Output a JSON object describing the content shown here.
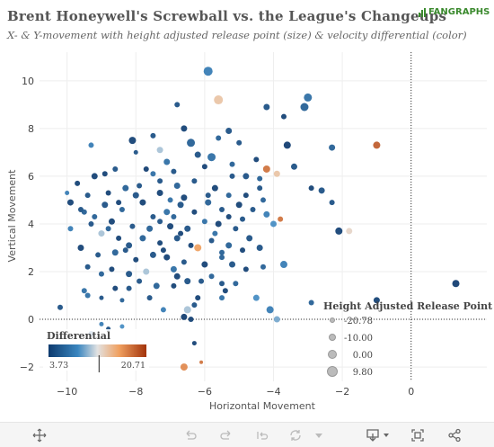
{
  "header": {
    "title": "Brent Honeywell's Screwball vs. the League's Changeups",
    "subtitle": "X- & Y-movement with height adjusted release point (size) & velocity differential (color)",
    "logo_text": "FANGRAPHS"
  },
  "colors": {
    "brand_green": "#3b8a2e",
    "scale_low": "#0d3a6e",
    "scale_mid": "#e8e8e8",
    "scale_high": "#a2330b"
  },
  "chart_data": {
    "type": "scatter",
    "xlabel": "Horizontal Movement",
    "ylabel": "Vertical Movement",
    "xlim": [
      -10.8,
      2.2
    ],
    "ylim": [
      -2.6,
      11.2
    ],
    "xticks": [
      -10,
      -8,
      -6,
      -4,
      -2,
      0
    ],
    "yticks": [
      -2,
      0,
      2,
      4,
      6,
      8,
      10
    ],
    "grid": true,
    "zero_lines": "dotted",
    "color_legend": {
      "title": "Differential",
      "min": 3.73,
      "max": 20.71,
      "marker": 12.5,
      "min_label": "3.73",
      "max_label": "20.71",
      "placement": "bottom-left"
    },
    "size_legend": {
      "title": "Height  Adjusted  Release  Point",
      "entries": [
        "-20.78",
        "-10.00",
        "0.00",
        "9.80"
      ],
      "placement": "bottom-right"
    },
    "points": [
      {
        "x": -5.9,
        "y": 10.4,
        "s": 9,
        "c": 8
      },
      {
        "x": -5.6,
        "y": 9.2,
        "s": 9,
        "c": 14
      },
      {
        "x": -3.0,
        "y": 9.3,
        "s": 8,
        "c": 7
      },
      {
        "x": -3.1,
        "y": 8.9,
        "s": 8,
        "c": 6
      },
      {
        "x": -4.2,
        "y": 8.9,
        "s": 6,
        "c": 5
      },
      {
        "x": -3.7,
        "y": 8.5,
        "s": 5,
        "c": 4
      },
      {
        "x": -6.8,
        "y": 9.0,
        "s": 5,
        "c": 5
      },
      {
        "x": -6.6,
        "y": 8.0,
        "s": 6,
        "c": 4
      },
      {
        "x": -7.5,
        "y": 7.7,
        "s": 5,
        "c": 5
      },
      {
        "x": -8.1,
        "y": 7.5,
        "s": 7,
        "c": 4
      },
      {
        "x": -9.3,
        "y": 7.3,
        "s": 5,
        "c": 8
      },
      {
        "x": -8.0,
        "y": 7.0,
        "s": 4,
        "c": 5
      },
      {
        "x": -7.3,
        "y": 7.1,
        "s": 6,
        "c": 11
      },
      {
        "x": -6.4,
        "y": 7.4,
        "s": 8,
        "c": 6
      },
      {
        "x": -5.6,
        "y": 7.6,
        "s": 5,
        "c": 6
      },
      {
        "x": -5.3,
        "y": 7.9,
        "s": 6,
        "c": 5
      },
      {
        "x": -5.0,
        "y": 7.4,
        "s": 5,
        "c": 5
      },
      {
        "x": -3.6,
        "y": 7.3,
        "s": 7,
        "c": 3
      },
      {
        "x": -2.3,
        "y": 7.2,
        "s": 6,
        "c": 6
      },
      {
        "x": -1.0,
        "y": 7.3,
        "s": 7,
        "c": 19
      },
      {
        "x": -6.2,
        "y": 6.9,
        "s": 6,
        "c": 5
      },
      {
        "x": -5.8,
        "y": 6.8,
        "s": 8,
        "c": 7
      },
      {
        "x": -5.2,
        "y": 6.5,
        "s": 5,
        "c": 6
      },
      {
        "x": -6.0,
        "y": 6.4,
        "s": 5,
        "c": 4
      },
      {
        "x": -6.9,
        "y": 6.2,
        "s": 5,
        "c": 5
      },
      {
        "x": -7.1,
        "y": 6.6,
        "s": 6,
        "c": 7
      },
      {
        "x": -7.7,
        "y": 6.3,
        "s": 5,
        "c": 3
      },
      {
        "x": -8.6,
        "y": 6.3,
        "s": 5,
        "c": 5
      },
      {
        "x": -9.2,
        "y": 6.0,
        "s": 6,
        "c": 4
      },
      {
        "x": -9.7,
        "y": 5.7,
        "s": 5,
        "c": 4
      },
      {
        "x": -4.8,
        "y": 6.0,
        "s": 6,
        "c": 5
      },
      {
        "x": -4.4,
        "y": 5.9,
        "s": 5,
        "c": 6
      },
      {
        "x": -4.2,
        "y": 6.3,
        "s": 7,
        "c": 18
      },
      {
        "x": -3.9,
        "y": 6.1,
        "s": 6,
        "c": 14
      },
      {
        "x": -3.4,
        "y": 6.4,
        "s": 6,
        "c": 5
      },
      {
        "x": -2.9,
        "y": 5.5,
        "s": 5,
        "c": 4
      },
      {
        "x": -2.6,
        "y": 5.4,
        "s": 6,
        "c": 5
      },
      {
        "x": -2.3,
        "y": 4.9,
        "s": 5,
        "c": 5
      },
      {
        "x": -5.3,
        "y": 5.2,
        "s": 5,
        "c": 6
      },
      {
        "x": -5.7,
        "y": 5.5,
        "s": 6,
        "c": 4
      },
      {
        "x": -6.3,
        "y": 5.8,
        "s": 5,
        "c": 5
      },
      {
        "x": -6.8,
        "y": 5.6,
        "s": 6,
        "c": 6
      },
      {
        "x": -7.3,
        "y": 5.3,
        "s": 6,
        "c": 4
      },
      {
        "x": -7.9,
        "y": 5.6,
        "s": 5,
        "c": 5
      },
      {
        "x": -8.3,
        "y": 5.5,
        "s": 6,
        "c": 6
      },
      {
        "x": -8.8,
        "y": 5.3,
        "s": 5,
        "c": 4
      },
      {
        "x": -9.4,
        "y": 5.2,
        "s": 5,
        "c": 5
      },
      {
        "x": -10.0,
        "y": 5.3,
        "s": 4,
        "c": 8
      },
      {
        "x": -9.9,
        "y": 4.9,
        "s": 6,
        "c": 4
      },
      {
        "x": -9.6,
        "y": 4.6,
        "s": 5,
        "c": 5
      },
      {
        "x": -8.9,
        "y": 4.8,
        "s": 6,
        "c": 5
      },
      {
        "x": -8.4,
        "y": 4.6,
        "s": 5,
        "c": 6
      },
      {
        "x": -7.8,
        "y": 4.9,
        "s": 6,
        "c": 4
      },
      {
        "x": -7.5,
        "y": 4.3,
        "s": 5,
        "c": 5
      },
      {
        "x": -7.1,
        "y": 4.5,
        "s": 6,
        "c": 7
      },
      {
        "x": -6.7,
        "y": 4.8,
        "s": 6,
        "c": 5
      },
      {
        "x": -6.3,
        "y": 4.5,
        "s": 5,
        "c": 4
      },
      {
        "x": -5.9,
        "y": 4.9,
        "s": 6,
        "c": 6
      },
      {
        "x": -5.5,
        "y": 4.6,
        "s": 5,
        "c": 5
      },
      {
        "x": -5.0,
        "y": 4.8,
        "s": 6,
        "c": 4
      },
      {
        "x": -4.6,
        "y": 4.6,
        "s": 5,
        "c": 5
      },
      {
        "x": -4.2,
        "y": 4.4,
        "s": 6,
        "c": 8
      },
      {
        "x": -3.8,
        "y": 4.2,
        "s": 5,
        "c": 18
      },
      {
        "x": -4.0,
        "y": 4.0,
        "s": 6,
        "c": 9
      },
      {
        "x": -9.5,
        "y": 4.5,
        "s": 5,
        "c": 6
      },
      {
        "x": -9.3,
        "y": 4.0,
        "s": 5,
        "c": 5
      },
      {
        "x": -8.7,
        "y": 4.1,
        "s": 6,
        "c": 4
      },
      {
        "x": -8.1,
        "y": 3.9,
        "s": 5,
        "c": 5
      },
      {
        "x": -7.6,
        "y": 3.8,
        "s": 6,
        "c": 6
      },
      {
        "x": -7.0,
        "y": 3.9,
        "s": 6,
        "c": 4
      },
      {
        "x": -6.5,
        "y": 3.8,
        "s": 6,
        "c": 5
      },
      {
        "x": -6.0,
        "y": 4.1,
        "s": 5,
        "c": 7
      },
      {
        "x": -5.6,
        "y": 4.0,
        "s": 6,
        "c": 4
      },
      {
        "x": -5.1,
        "y": 3.8,
        "s": 5,
        "c": 5
      },
      {
        "x": -4.7,
        "y": 3.4,
        "s": 6,
        "c": 5
      },
      {
        "x": -2.1,
        "y": 3.7,
        "s": 7,
        "c": 4
      },
      {
        "x": -1.8,
        "y": 3.7,
        "s": 6,
        "c": 13
      },
      {
        "x": -9.0,
        "y": 3.6,
        "s": 6,
        "c": 11
      },
      {
        "x": -9.9,
        "y": 3.8,
        "s": 5,
        "c": 8
      },
      {
        "x": -8.5,
        "y": 3.4,
        "s": 5,
        "c": 4
      },
      {
        "x": -8.2,
        "y": 3.1,
        "s": 6,
        "c": 5
      },
      {
        "x": -7.8,
        "y": 3.4,
        "s": 6,
        "c": 6
      },
      {
        "x": -7.3,
        "y": 3.2,
        "s": 5,
        "c": 4
      },
      {
        "x": -6.8,
        "y": 3.4,
        "s": 6,
        "c": 5
      },
      {
        "x": -6.4,
        "y": 3.1,
        "s": 5,
        "c": 4
      },
      {
        "x": -6.2,
        "y": 3.0,
        "s": 7,
        "c": 16
      },
      {
        "x": -5.8,
        "y": 3.3,
        "s": 5,
        "c": 5
      },
      {
        "x": -5.3,
        "y": 3.1,
        "s": 6,
        "c": 6
      },
      {
        "x": -4.9,
        "y": 2.9,
        "s": 5,
        "c": 4
      },
      {
        "x": -4.4,
        "y": 3.0,
        "s": 6,
        "c": 5
      },
      {
        "x": -9.6,
        "y": 3.0,
        "s": 6,
        "c": 4
      },
      {
        "x": -9.1,
        "y": 2.7,
        "s": 5,
        "c": 5
      },
      {
        "x": -8.6,
        "y": 2.8,
        "s": 6,
        "c": 6
      },
      {
        "x": -8.0,
        "y": 2.5,
        "s": 5,
        "c": 4
      },
      {
        "x": -7.5,
        "y": 2.7,
        "s": 6,
        "c": 5
      },
      {
        "x": -7.1,
        "y": 2.6,
        "s": 6,
        "c": 4
      },
      {
        "x": -6.9,
        "y": 2.1,
        "s": 6,
        "c": 7
      },
      {
        "x": -6.6,
        "y": 2.4,
        "s": 5,
        "c": 5
      },
      {
        "x": -6.0,
        "y": 2.3,
        "s": 6,
        "c": 4
      },
      {
        "x": -5.5,
        "y": 2.6,
        "s": 5,
        "c": 6
      },
      {
        "x": -5.2,
        "y": 2.3,
        "s": 6,
        "c": 5
      },
      {
        "x": -4.8,
        "y": 2.1,
        "s": 5,
        "c": 4
      },
      {
        "x": -4.3,
        "y": 2.2,
        "s": 5,
        "c": 6
      },
      {
        "x": -3.7,
        "y": 2.3,
        "s": 7,
        "c": 8
      },
      {
        "x": -9.4,
        "y": 2.2,
        "s": 5,
        "c": 5
      },
      {
        "x": -9.0,
        "y": 1.9,
        "s": 5,
        "c": 6
      },
      {
        "x": -8.7,
        "y": 2.1,
        "s": 5,
        "c": 4
      },
      {
        "x": -8.2,
        "y": 1.9,
        "s": 6,
        "c": 5
      },
      {
        "x": -7.7,
        "y": 2.0,
        "s": 6,
        "c": 11
      },
      {
        "x": -7.9,
        "y": 1.6,
        "s": 5,
        "c": 5
      },
      {
        "x": -6.8,
        "y": 1.8,
        "s": 6,
        "c": 4
      },
      {
        "x": -6.5,
        "y": 1.6,
        "s": 6,
        "c": 5
      },
      {
        "x": -5.8,
        "y": 1.8,
        "s": 5,
        "c": 6
      },
      {
        "x": -5.5,
        "y": 1.5,
        "s": 5,
        "c": 5
      },
      {
        "x": -9.5,
        "y": 1.2,
        "s": 5,
        "c": 7
      },
      {
        "x": -8.6,
        "y": 1.3,
        "s": 5,
        "c": 4
      },
      {
        "x": -8.2,
        "y": 1.3,
        "s": 5,
        "c": 5
      },
      {
        "x": -7.4,
        "y": 1.4,
        "s": 6,
        "c": 6
      },
      {
        "x": -6.9,
        "y": 1.4,
        "s": 5,
        "c": 4
      },
      {
        "x": -6.1,
        "y": 1.6,
        "s": 5,
        "c": 5
      },
      {
        "x": -5.4,
        "y": 1.2,
        "s": 5,
        "c": 4
      },
      {
        "x": -5.1,
        "y": 1.5,
        "s": 5,
        "c": 6
      },
      {
        "x": -9.4,
        "y": 1.0,
        "s": 5,
        "c": 7
      },
      {
        "x": -9.0,
        "y": 0.9,
        "s": 4,
        "c": 5
      },
      {
        "x": -8.4,
        "y": 0.8,
        "s": 4,
        "c": 6
      },
      {
        "x": -7.6,
        "y": 0.9,
        "s": 5,
        "c": 5
      },
      {
        "x": -6.2,
        "y": 0.9,
        "s": 5,
        "c": 4
      },
      {
        "x": -5.5,
        "y": 0.9,
        "s": 5,
        "c": 7
      },
      {
        "x": -4.5,
        "y": 0.9,
        "s": 6,
        "c": 9
      },
      {
        "x": -10.2,
        "y": 0.5,
        "s": 5,
        "c": 5
      },
      {
        "x": -7.2,
        "y": 0.4,
        "s": 5,
        "c": 8
      },
      {
        "x": -6.5,
        "y": 0.4,
        "s": 7,
        "c": 11
      },
      {
        "x": -6.3,
        "y": 0.6,
        "s": 5,
        "c": 5
      },
      {
        "x": -6.6,
        "y": 0.1,
        "s": 6,
        "c": 3
      },
      {
        "x": -6.4,
        "y": 0.0,
        "s": 5,
        "c": 4
      },
      {
        "x": -4.1,
        "y": 0.4,
        "s": 7,
        "c": 8
      },
      {
        "x": -3.9,
        "y": 0.0,
        "s": 6,
        "c": 10
      },
      {
        "x": -2.9,
        "y": 0.7,
        "s": 5,
        "c": 6
      },
      {
        "x": -1.0,
        "y": 0.8,
        "s": 6,
        "c": 4
      },
      {
        "x": 1.3,
        "y": 1.5,
        "s": 7,
        "c": 3
      },
      {
        "x": -9.0,
        "y": -0.2,
        "s": 4,
        "c": 8
      },
      {
        "x": -8.8,
        "y": -0.4,
        "s": 4,
        "c": 5
      },
      {
        "x": -8.4,
        "y": -0.3,
        "s": 4,
        "c": 9
      },
      {
        "x": -9.3,
        "y": -0.6,
        "s": 5,
        "c": 6
      },
      {
        "x": -6.3,
        "y": -1.0,
        "s": 4,
        "c": 4
      },
      {
        "x": -6.6,
        "y": -2.0,
        "s": 7,
        "c": 17
      },
      {
        "x": -6.1,
        "y": -1.8,
        "s": 3,
        "c": 18
      },
      {
        "x": -4.4,
        "y": 5.5,
        "s": 5,
        "c": 5
      },
      {
        "x": -4.8,
        "y": 5.2,
        "s": 5,
        "c": 4
      },
      {
        "x": -4.3,
        "y": 5.0,
        "s": 5,
        "c": 6
      },
      {
        "x": -5.9,
        "y": 5.2,
        "s": 5,
        "c": 5
      },
      {
        "x": -6.6,
        "y": 5.1,
        "s": 6,
        "c": 4
      },
      {
        "x": -7.0,
        "y": 5.0,
        "s": 5,
        "c": 7
      },
      {
        "x": -8.0,
        "y": 5.2,
        "s": 6,
        "c": 5
      },
      {
        "x": -8.5,
        "y": 4.9,
        "s": 5,
        "c": 4
      },
      {
        "x": -9.2,
        "y": 4.3,
        "s": 5,
        "c": 6
      },
      {
        "x": -7.3,
        "y": 4.1,
        "s": 5,
        "c": 5
      },
      {
        "x": -6.9,
        "y": 4.3,
        "s": 5,
        "c": 6
      },
      {
        "x": -5.3,
        "y": 4.3,
        "s": 5,
        "c": 4
      },
      {
        "x": -4.9,
        "y": 4.2,
        "s": 5,
        "c": 5
      },
      {
        "x": -8.8,
        "y": 3.8,
        "s": 5,
        "c": 6
      },
      {
        "x": -6.7,
        "y": 3.6,
        "s": 5,
        "c": 4
      },
      {
        "x": -5.7,
        "y": 3.6,
        "s": 5,
        "c": 7
      },
      {
        "x": -8.3,
        "y": 2.9,
        "s": 5,
        "c": 5
      },
      {
        "x": -7.2,
        "y": 2.9,
        "s": 5,
        "c": 4
      },
      {
        "x": -5.5,
        "y": 2.8,
        "s": 5,
        "c": 6
      },
      {
        "x": -7.3,
        "y": 5.8,
        "s": 5,
        "c": 5
      },
      {
        "x": -8.9,
        "y": 6.1,
        "s": 5,
        "c": 4
      },
      {
        "x": -7.5,
        "y": 6.1,
        "s": 5,
        "c": 7
      },
      {
        "x": -5.2,
        "y": 6.0,
        "s": 5,
        "c": 5
      },
      {
        "x": -4.5,
        "y": 6.7,
        "s": 5,
        "c": 4
      }
    ]
  }
}
